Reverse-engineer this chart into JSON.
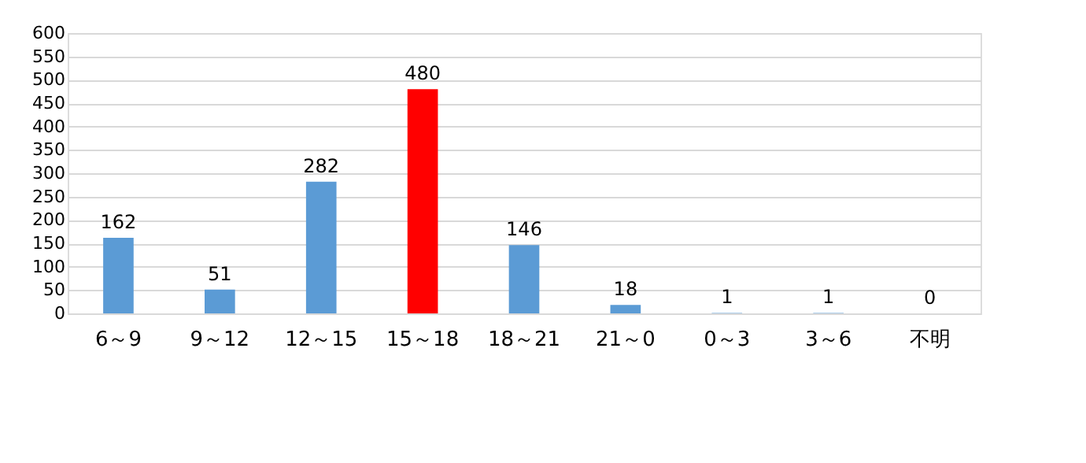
{
  "chart_data": {
    "type": "bar",
    "categories": [
      "6～9",
      "9～12",
      "12～15",
      "15～18",
      "18～21",
      "21～0",
      "0～3",
      "3～6",
      "不明"
    ],
    "values": [
      162,
      51,
      282,
      480,
      146,
      18,
      1,
      1,
      0
    ],
    "colors": [
      "#5b9bd5",
      "#5b9bd5",
      "#5b9bd5",
      "#ff0000",
      "#5b9bd5",
      "#5b9bd5",
      "#5b9bd5",
      "#5b9bd5",
      "#5b9bd5"
    ],
    "ylim": [
      0,
      600
    ],
    "yticks": [
      0,
      50,
      100,
      150,
      200,
      250,
      300,
      350,
      400,
      450,
      500,
      550,
      600
    ],
    "grid": "y",
    "data_labels": true
  }
}
